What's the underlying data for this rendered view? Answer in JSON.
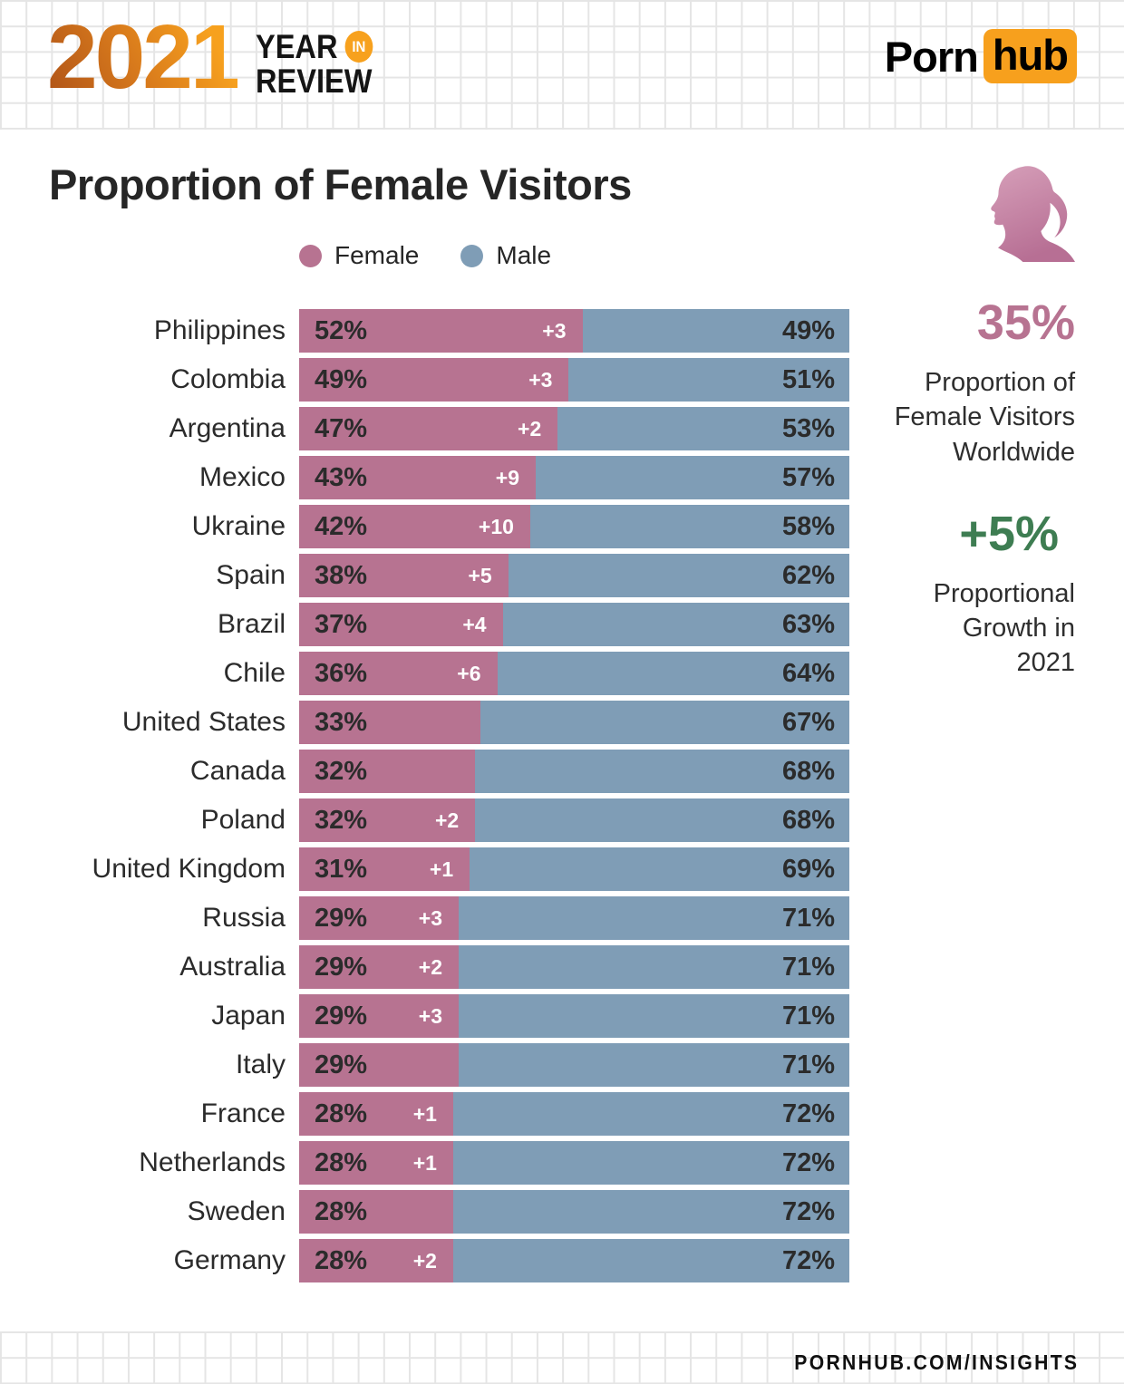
{
  "header": {
    "year": "2021",
    "year_word": "YEAR",
    "in_badge": "IN",
    "review_word": "REVIEW",
    "brand_porn": "Porn",
    "brand_hub": "hub"
  },
  "page_title": "Proportion of Female Visitors",
  "legend": [
    {
      "label": "Female",
      "color": "#b77391"
    },
    {
      "label": "Male",
      "color": "#7f9db6"
    }
  ],
  "sidebar": {
    "icon": "female-profile-silhouette-icon",
    "worldwide_value": "35%",
    "worldwide_value_color": "#b77391",
    "worldwide_label_lines": [
      "Proportion of",
      "Female Visitors",
      "Worldwide"
    ],
    "growth_value": "+5%",
    "growth_value_color": "#3e7d52",
    "growth_label_lines": [
      "Proportional",
      "Growth in",
      "2021"
    ]
  },
  "footer": {
    "url_text": "PORNHUB.COM/INSIGHTS"
  },
  "chart_data": {
    "type": "bar",
    "orientation": "horizontal",
    "stacked": true,
    "title": "Proportion of Female Visitors",
    "value_suffix": "%",
    "legend_position": "top",
    "categories": [
      "Philippines",
      "Colombia",
      "Argentina",
      "Mexico",
      "Ukraine",
      "Spain",
      "Brazil",
      "Chile",
      "United States",
      "Canada",
      "Poland",
      "United Kingdom",
      "Russia",
      "Australia",
      "Japan",
      "Italy",
      "France",
      "Netherlands",
      "Sweden",
      "Germany"
    ],
    "series": [
      {
        "name": "Female",
        "color": "#b77391",
        "values": [
          52,
          49,
          47,
          43,
          42,
          38,
          37,
          36,
          33,
          32,
          32,
          31,
          29,
          29,
          29,
          29,
          28,
          28,
          28,
          28
        ]
      },
      {
        "name": "Male",
        "color": "#7f9db6",
        "values": [
          49,
          51,
          53,
          57,
          58,
          62,
          63,
          64,
          67,
          68,
          68,
          69,
          71,
          71,
          71,
          71,
          72,
          72,
          72,
          72
        ]
      }
    ],
    "growth_labels": [
      "+3",
      "+3",
      "+2",
      "+9",
      "+10",
      "+5",
      "+4",
      "+6",
      "",
      "",
      "+2",
      "+1",
      "+3",
      "+2",
      "+3",
      "",
      "+1",
      "+1",
      "",
      "+2"
    ]
  }
}
